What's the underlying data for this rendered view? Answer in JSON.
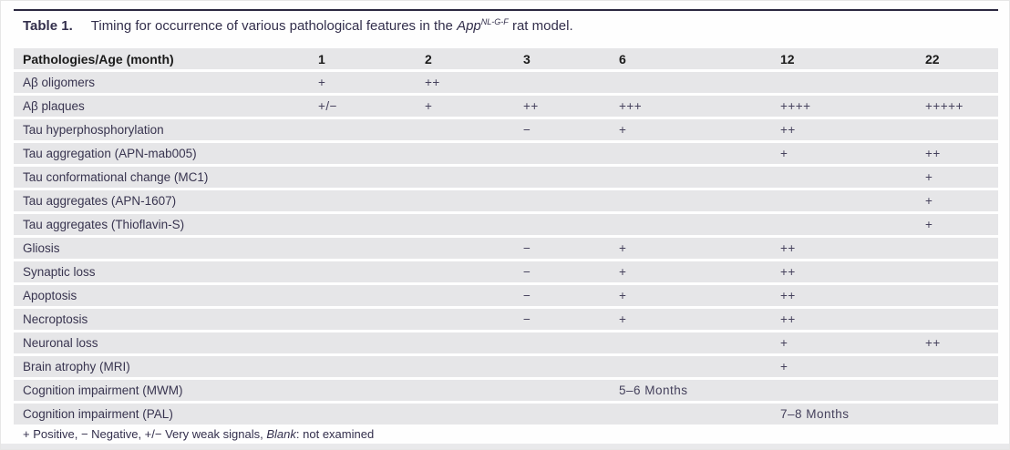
{
  "title": {
    "table_label": "Table 1.",
    "text_prefix": "Timing for occurrence of various pathological features in the ",
    "gene": "App",
    "gene_superscript": "NL-G-F",
    "text_suffix": " rat model."
  },
  "table": {
    "header": {
      "pathology": "Pathologies/Age (month)",
      "ages": [
        "1",
        "2",
        "3",
        "6",
        "12",
        "22"
      ]
    },
    "rows": [
      {
        "label": "Aβ oligomers",
        "values": [
          "+",
          "++",
          "",
          "",
          "",
          ""
        ]
      },
      {
        "label": "Aβ plaques",
        "values": [
          "+/−",
          "+",
          "++",
          "+++",
          "++++",
          "+++++"
        ]
      },
      {
        "label": "Tau hyperphosphorylation",
        "values": [
          "",
          "",
          "−",
          "+",
          "++",
          ""
        ]
      },
      {
        "label": "Tau aggregation (APN-mab005)",
        "values": [
          "",
          "",
          "",
          "",
          "+",
          "++"
        ]
      },
      {
        "label": "Tau conformational change (MC1)",
        "values": [
          "",
          "",
          "",
          "",
          "",
          "+"
        ]
      },
      {
        "label": "Tau aggregates (APN-1607)",
        "values": [
          "",
          "",
          "",
          "",
          "",
          "+"
        ]
      },
      {
        "label": "Tau aggregates (Thioflavin-S)",
        "values": [
          "",
          "",
          "",
          "",
          "",
          "+"
        ]
      },
      {
        "label": "Gliosis",
        "values": [
          "",
          "",
          "−",
          "+",
          "++",
          ""
        ]
      },
      {
        "label": "Synaptic loss",
        "values": [
          "",
          "",
          "−",
          "+",
          "++",
          ""
        ]
      },
      {
        "label": "Apoptosis",
        "values": [
          "",
          "",
          "−",
          "+",
          "++",
          ""
        ]
      },
      {
        "label": "Necroptosis",
        "values": [
          "",
          "",
          "−",
          "+",
          "++",
          ""
        ]
      },
      {
        "label": "Neuronal loss",
        "values": [
          "",
          "",
          "",
          "",
          "+",
          "++"
        ]
      },
      {
        "label": "Brain atrophy (MRI)",
        "values": [
          "",
          "",
          "",
          "",
          "+",
          ""
        ]
      },
      {
        "label": "Cognition impairment (MWM)",
        "values": [
          "",
          "",
          "",
          "5–6 Months",
          "",
          ""
        ]
      },
      {
        "label": "Cognition impairment (PAL)",
        "values": [
          "",
          "",
          "",
          "",
          "7–8 Months",
          ""
        ]
      }
    ]
  },
  "footnote": {
    "part1": "+ Positive, − Negative, +/− Very weak signals, ",
    "italic_word": "Blank",
    "part2": ": not examined"
  },
  "colors": {
    "row_band": "#e6e6e8",
    "rule": "#2b2840",
    "body_text": "#38344f",
    "header_text": "#1a1a1a"
  }
}
